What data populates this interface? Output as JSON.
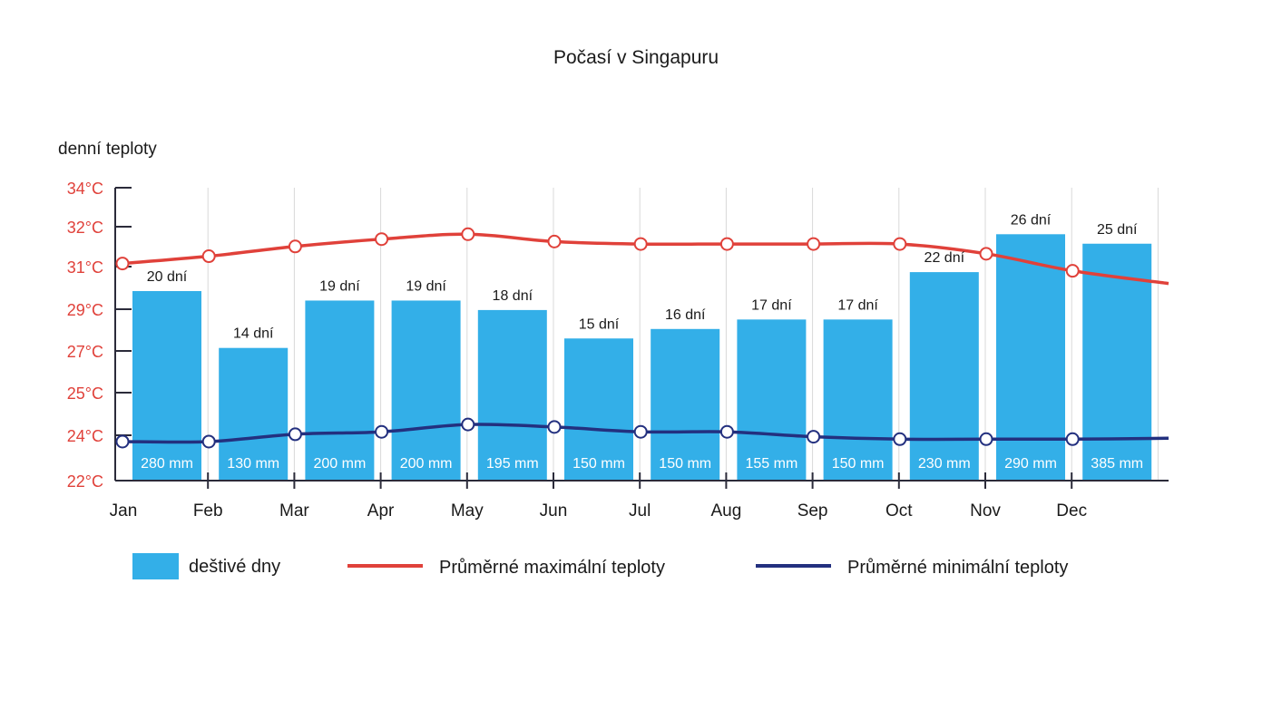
{
  "chart_data": {
    "type": "bar",
    "title": "Počasí v Singapuru",
    "ylabel": "denní teploty",
    "y_tick_labels": [
      "34°C",
      "32°C",
      "31°C",
      "29°C",
      "27°C",
      "25°C",
      "24°C",
      "22°C"
    ],
    "categories": [
      "Jan",
      "Feb",
      "Mar",
      "Apr",
      "May",
      "Jun",
      "Jul",
      "Aug",
      "Sep",
      "Oct",
      "Nov",
      "Dec"
    ],
    "rainy_days": [
      20,
      14,
      19,
      19,
      18,
      15,
      16,
      17,
      17,
      22,
      26,
      25
    ],
    "rainy_day_labels": [
      "20 dní",
      "14 dní",
      "19 dní",
      "19 dní",
      "18 dní",
      "15 dní",
      "16 dní",
      "17 dní",
      "17 dní",
      "22 dní",
      "26 dní",
      "25 dní"
    ],
    "rainfall_labels": [
      "280 mm",
      "130 mm",
      "200 mm",
      "200 mm",
      "195 mm",
      "150 mm",
      "150 mm",
      "155 mm",
      "150 mm",
      "230 mm",
      "290 mm",
      "385 mm"
    ],
    "series": [
      {
        "name": "Průměrné maximální teploty",
        "color": "#e0413a",
        "values": [
          30.9,
          31.2,
          31.6,
          31.9,
          32.1,
          31.8,
          31.7,
          31.7,
          31.7,
          31.7,
          31.3,
          30.6
        ]
      },
      {
        "name": "Průměrné minimální teploty",
        "color": "#23307f",
        "values": [
          23.6,
          23.6,
          23.9,
          24.0,
          24.3,
          24.2,
          24.0,
          24.0,
          23.8,
          23.7,
          23.7,
          23.7
        ]
      }
    ],
    "bar_color": "#33afe8",
    "legend": [
      {
        "label": "deštivé dny",
        "kind": "bar",
        "color": "#33afe8"
      },
      {
        "label": "Průměrné maximální teploty",
        "kind": "line",
        "color": "#e0413a"
      },
      {
        "label": "Průměrné minimální teploty",
        "kind": "line",
        "color": "#23307f"
      }
    ],
    "legend_position": "bottom",
    "grid": true,
    "tick_label_color": "#e0413a",
    "axis_color": "#2b2b3a"
  }
}
